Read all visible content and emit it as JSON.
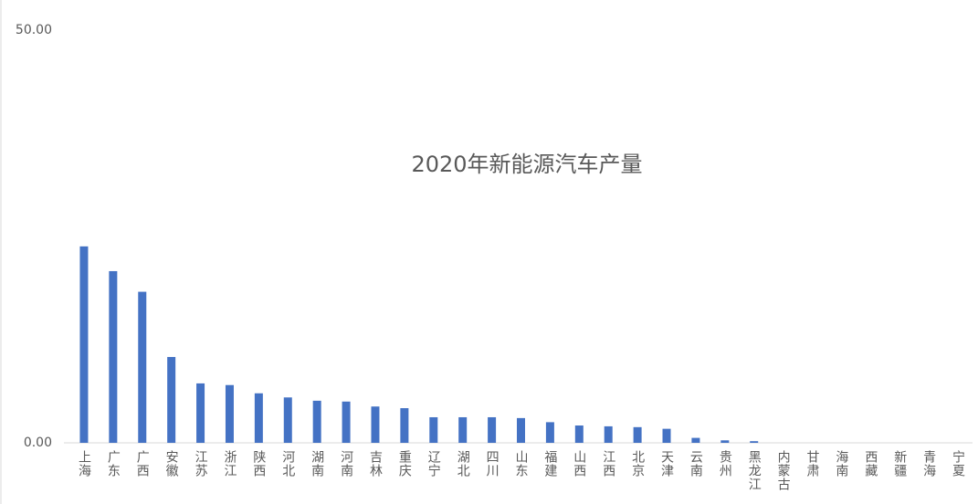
{
  "chart_data": {
    "type": "bar",
    "title": "2020年新能源汽车产量",
    "categories": [
      "上海",
      "广东",
      "广西",
      "安徽",
      "江苏",
      "浙江",
      "陕西",
      "河北",
      "湖南",
      "河南",
      "吉林",
      "重庆",
      "辽宁",
      "湖北",
      "四川",
      "山东",
      "福建",
      "山西",
      "江西",
      "北京",
      "天津",
      "云南",
      "贵州",
      "黑龙江",
      "内蒙古",
      "甘肃",
      "海南",
      "西藏",
      "新疆",
      "青海",
      "宁夏"
    ],
    "values": [
      23.8,
      20.8,
      18.3,
      10.4,
      7.2,
      7.0,
      6.0,
      5.5,
      5.1,
      5.0,
      4.4,
      4.2,
      3.1,
      3.1,
      3.1,
      3.0,
      2.5,
      2.1,
      2.0,
      1.9,
      1.7,
      0.6,
      0.3,
      0.2,
      0,
      0,
      0,
      0,
      0,
      0,
      0
    ],
    "color": "#4472c4",
    "ylim": [
      0,
      50
    ],
    "yticks": [
      {
        "value": 0,
        "label": "0.00"
      },
      {
        "value": 50,
        "label": "50.00"
      }
    ],
    "grid": false
  }
}
